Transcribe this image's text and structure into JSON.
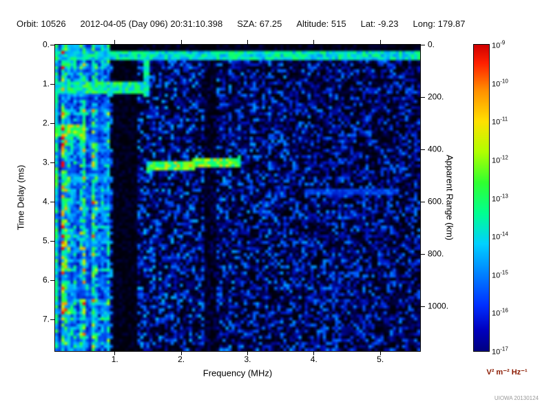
{
  "header": {
    "fields": [
      {
        "label": "Orbit:",
        "value": "10526"
      },
      {
        "label": "",
        "value": "2012-04-05 (Day 096) 20:31:10.398"
      },
      {
        "label": "SZA:",
        "value": "67.25"
      },
      {
        "label": "Altitude:",
        "value": "515"
      },
      {
        "label": "Lat:",
        "value": "-9.23"
      },
      {
        "label": "Long:",
        "value": "179.87"
      }
    ]
  },
  "chart_data": {
    "type": "heatmap",
    "xlabel": "Frequency (MHz)",
    "ylabel_left": "Time Delay (ms)",
    "ylabel_right": "Apparent Range (km)",
    "x_range": [
      0.1,
      5.6
    ],
    "y_range": [
      0,
      7.8
    ],
    "right_axis_range": [
      0,
      1170
    ],
    "x_ticks": [
      1,
      2,
      3,
      4,
      5
    ],
    "y_ticks": [
      0,
      1,
      2,
      3,
      4,
      5,
      6,
      7
    ],
    "right_ticks": [
      0,
      200,
      400,
      600,
      800,
      1000
    ],
    "seed": 7,
    "noise_band_max_freq": 0.92,
    "colormap": [
      [
        0,
        "#000008"
      ],
      [
        0.08,
        "#000060"
      ],
      [
        0.2,
        "#0010c0"
      ],
      [
        0.35,
        "#0060ff"
      ],
      [
        0.5,
        "#00c8ff"
      ],
      [
        0.62,
        "#00ff90"
      ],
      [
        0.72,
        "#30ff30"
      ],
      [
        0.82,
        "#ccff00"
      ],
      [
        0.9,
        "#ffa000"
      ],
      [
        1,
        "#ff0000"
      ]
    ],
    "features": [
      {
        "name": "transmit-pulse",
        "type": "hline",
        "delay": 0.28,
        "thickness": 0.16,
        "f_start": 0.1,
        "f_end": 5.6,
        "intensity": 0.55
      },
      {
        "name": "harmonic-band-1",
        "type": "hline",
        "delay": 1.12,
        "thickness": 0.22,
        "f_start": 0.1,
        "f_end": 1.45,
        "intensity": 0.6
      },
      {
        "name": "harmonic-band-2",
        "type": "hline",
        "delay": 2.18,
        "thickness": 0.22,
        "f_start": 0.1,
        "f_end": 0.55,
        "intensity": 0.7
      },
      {
        "name": "ionospheric-echo-trace",
        "type": "trace",
        "f_start": 1.48,
        "f_end": 2.9,
        "delay_start": 3.12,
        "delay_end": 2.96,
        "thickness": 0.18,
        "intensity": 0.62
      },
      {
        "name": "plasma-line",
        "type": "vline",
        "f": 1.47,
        "thickness": 0.08,
        "d_start": 0.3,
        "d_end": 1.35,
        "intensity": 0.58
      },
      {
        "name": "faint-echo",
        "type": "hline",
        "delay": 3.75,
        "thickness": 0.14,
        "f_start": 3.85,
        "f_end": 5.3,
        "intensity": 0.3
      },
      {
        "name": "rfi-gap-1",
        "type": "vgap",
        "f_start": 0.95,
        "f_end": 1.33,
        "factor": 0.12
      },
      {
        "name": "rfi-gap-2",
        "type": "vgap",
        "f_start": 2.36,
        "f_end": 2.52,
        "factor": 0.25
      }
    ],
    "colorbar": {
      "exponents": [
        -9,
        -10,
        -11,
        -12,
        -13,
        -14,
        -15,
        -16,
        -17
      ],
      "units": "V² m⁻² Hz⁻¹",
      "units_color": "#8b1a00",
      "gradient": [
        [
          0,
          "#d00000"
        ],
        [
          0.06,
          "#ff2000"
        ],
        [
          0.15,
          "#ff9000"
        ],
        [
          0.25,
          "#ffe000"
        ],
        [
          0.35,
          "#b0ff00"
        ],
        [
          0.45,
          "#30ff30"
        ],
        [
          0.55,
          "#00ff90"
        ],
        [
          0.65,
          "#00d0ff"
        ],
        [
          0.75,
          "#0080ff"
        ],
        [
          0.85,
          "#0030ff"
        ],
        [
          0.93,
          "#0000c0"
        ],
        [
          1,
          "#000080"
        ]
      ]
    }
  },
  "watermark": "UIOWA 20130124"
}
